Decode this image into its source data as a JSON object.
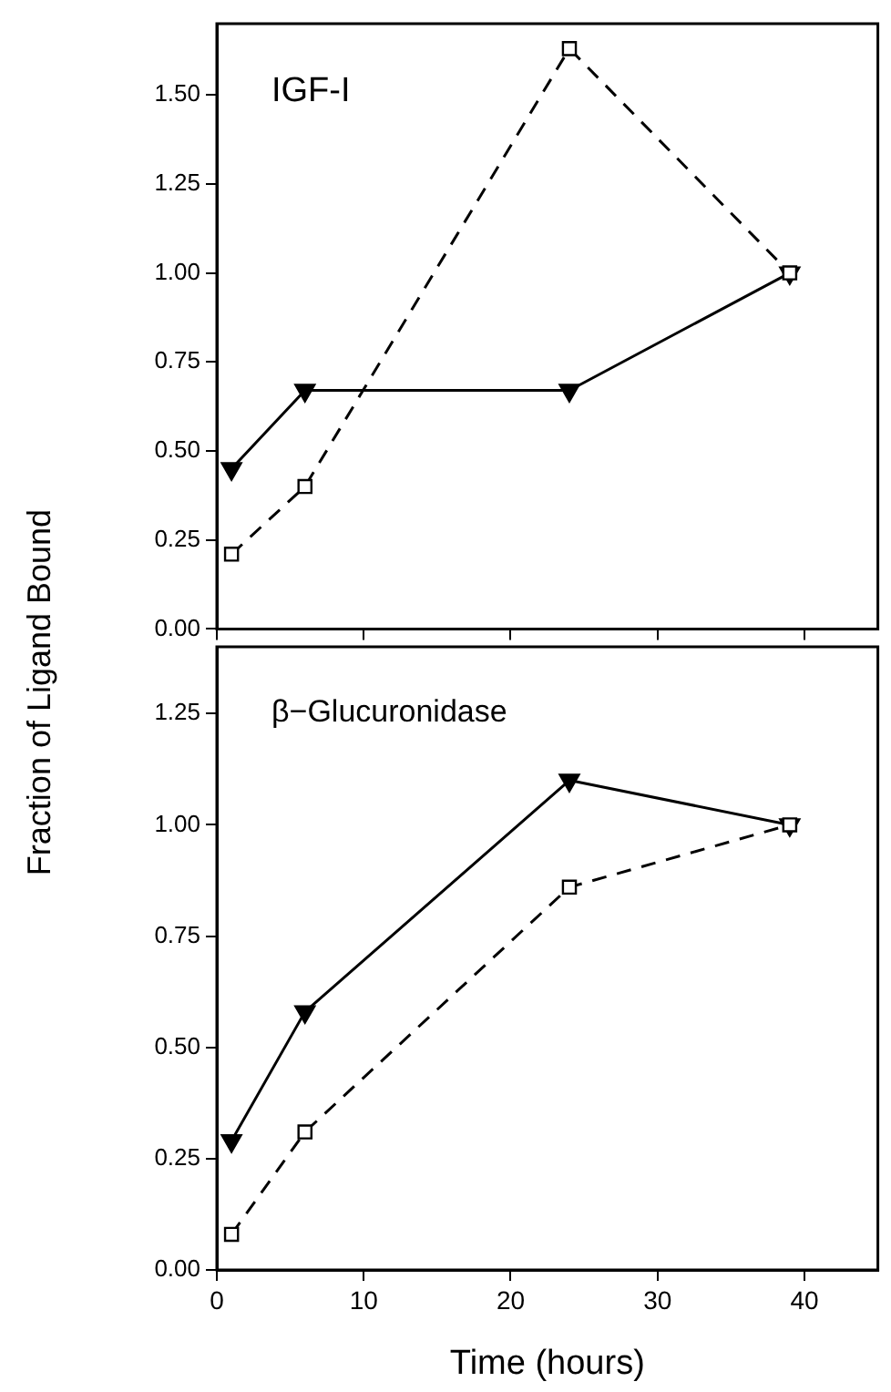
{
  "chart_data": [
    {
      "type": "line",
      "title": "IGF-I",
      "ylabel": "Fraction of Ligand Bound",
      "x": [
        1,
        6,
        24,
        39
      ],
      "series": [
        {
          "color": "#000000",
          "marker": "triangle",
          "line_style": "solid",
          "values": [
            0.45,
            0.67,
            0.67,
            1.0
          ]
        },
        {
          "color": "#000000",
          "marker": "square",
          "line_style": "dashed",
          "values": [
            0.21,
            0.4,
            1.63,
            1.0
          ]
        }
      ],
      "xlim": [
        0,
        45
      ],
      "xticks": [
        0,
        10,
        20,
        30,
        40
      ],
      "ylim": [
        0,
        1.7
      ],
      "yticks": [
        {
          "value": 0,
          "label": "0.00"
        },
        {
          "value": 0.25,
          "label": "0.25"
        },
        {
          "value": 0.5,
          "label": "0.50"
        },
        {
          "value": 0.75,
          "label": "0.75"
        },
        {
          "value": 1,
          "label": "1.00"
        },
        {
          "value": 1.25,
          "label": "1.25"
        },
        {
          "value": 1.5,
          "label": "1.50"
        }
      ],
      "grid": false,
      "legend": false,
      "tick_labels": "y"
    },
    {
      "type": "line",
      "title": "β−Glucuronidase",
      "xlabel": "Time (hours)",
      "x": [
        1,
        6,
        24,
        39
      ],
      "series": [
        {
          "color": "#000000",
          "marker": "triangle",
          "line_style": "solid",
          "values": [
            0.29,
            0.58,
            1.1,
            1.0
          ]
        },
        {
          "color": "#000000",
          "marker": "square",
          "line_style": "dashed",
          "values": [
            0.08,
            0.31,
            0.86,
            1.0
          ]
        }
      ],
      "xlim": [
        0,
        45
      ],
      "xticks": [
        0,
        10,
        20,
        30,
        40
      ],
      "ylim": [
        0,
        1.4
      ],
      "yticks": [
        {
          "value": 0,
          "label": "0.00"
        },
        {
          "value": 0.25,
          "label": "0.25"
        },
        {
          "value": 0.5,
          "label": "0.50"
        },
        {
          "value": 0.75,
          "label": "0.75"
        },
        {
          "value": 1,
          "label": "1.00"
        },
        {
          "value": 1.25,
          "label": "1.25"
        }
      ],
      "grid": false,
      "legend": false
    }
  ]
}
